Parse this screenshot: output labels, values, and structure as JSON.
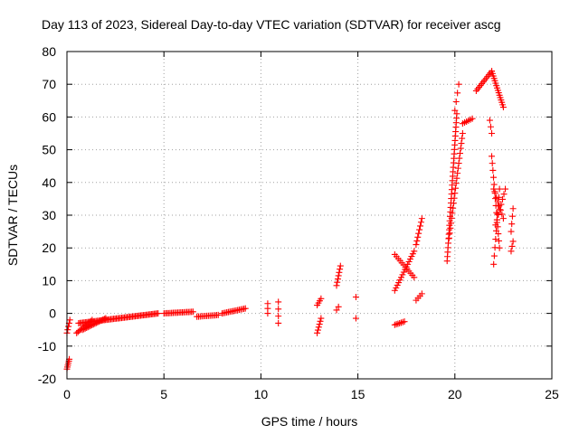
{
  "chart_data": {
    "type": "scatter",
    "title": "Day 113 of 2023, Sidereal Day-to-day VTEC variation (SDTVAR) for receiver ascg",
    "xlabel": "GPS time / hours",
    "ylabel": "SDTVAR / TECUs",
    "xlim": [
      0,
      25
    ],
    "ylim": [
      -20,
      80
    ],
    "xticks": [
      "0",
      "5",
      "10",
      "15",
      "20",
      "25"
    ],
    "yticks": [
      "-20",
      "-10",
      "0",
      "10",
      "20",
      "30",
      "40",
      "50",
      "60",
      "70",
      "80"
    ],
    "grid": true,
    "marker": "+",
    "color": "#ff0000",
    "series": [
      {
        "name": "SDTVAR",
        "segments": [
          {
            "x0": 0.0,
            "x1": 0.12,
            "y0": -17,
            "y1": -14,
            "n": 6
          },
          {
            "x0": 0.0,
            "x1": 0.15,
            "y0": -6,
            "y1": -2,
            "n": 5
          },
          {
            "x0": 0.5,
            "x1": 1.3,
            "y0": -6,
            "y1": -2,
            "n": 12
          },
          {
            "x0": 0.8,
            "x1": 2.0,
            "y0": -5,
            "y1": -1.5,
            "n": 18
          },
          {
            "x0": 0.6,
            "x1": 4.7,
            "y0": -3,
            "y1": 0,
            "n": 60
          },
          {
            "x0": 5.0,
            "x1": 6.5,
            "y0": 0,
            "y1": 0.5,
            "n": 20
          },
          {
            "x0": 6.7,
            "x1": 7.8,
            "y0": -1,
            "y1": -0.5,
            "n": 14
          },
          {
            "x0": 8.0,
            "x1": 9.2,
            "y0": 0,
            "y1": 1.5,
            "n": 16
          },
          {
            "x0": 10.35,
            "x1": 10.35,
            "y0": 0,
            "y1": 3,
            "n": 3
          },
          {
            "x0": 10.9,
            "x1": 10.9,
            "y0": -3,
            "y1": 3.5,
            "n": 4
          },
          {
            "x0": 12.9,
            "x1": 13.1,
            "y0": 2.5,
            "y1": 4.5,
            "n": 4
          },
          {
            "x0": 12.9,
            "x1": 13.1,
            "y0": -6,
            "y1": -1.5,
            "n": 6
          },
          {
            "x0": 13.9,
            "x1": 14.1,
            "y0": 8.5,
            "y1": 14.5,
            "n": 7
          },
          {
            "x0": 13.9,
            "x1": 14.0,
            "y0": 1,
            "y1": 2,
            "n": 2
          },
          {
            "x0": 14.9,
            "x1": 14.9,
            "y0": 5,
            "y1": 5,
            "n": 1
          },
          {
            "x0": 14.9,
            "x1": 14.9,
            "y0": -1.5,
            "y1": -1.5,
            "n": 1
          },
          {
            "x0": 16.9,
            "x1": 17.4,
            "y0": -3.5,
            "y1": -2.5,
            "n": 7
          },
          {
            "x0": 16.9,
            "x1": 17.9,
            "y0": 7,
            "y1": 19,
            "n": 16
          },
          {
            "x0": 16.9,
            "x1": 17.9,
            "y0": 18,
            "y1": 11,
            "n": 12
          },
          {
            "x0": 18.0,
            "x1": 18.3,
            "y0": 4,
            "y1": 6,
            "n": 4
          },
          {
            "x0": 18.0,
            "x1": 18.3,
            "y0": 21,
            "y1": 29,
            "n": 8
          },
          {
            "x0": 19.6,
            "x1": 20.1,
            "y0": 16,
            "y1": 61,
            "n": 34
          },
          {
            "x0": 19.7,
            "x1": 20.4,
            "y0": 23,
            "y1": 55,
            "n": 22
          },
          {
            "x0": 20.0,
            "x1": 20.2,
            "y0": 62,
            "y1": 70,
            "n": 4
          },
          {
            "x0": 20.4,
            "x1": 20.9,
            "y0": 58,
            "y1": 59.5,
            "n": 6
          },
          {
            "x0": 21.1,
            "x1": 21.9,
            "y0": 68,
            "y1": 74,
            "n": 12
          },
          {
            "x0": 21.8,
            "x1": 21.9,
            "y0": 59,
            "y1": 55,
            "n": 3
          },
          {
            "x0": 21.9,
            "x1": 22.5,
            "y0": 74,
            "y1": 63,
            "n": 16
          },
          {
            "x0": 21.9,
            "x1": 22.3,
            "y0": 48,
            "y1": 20,
            "n": 14
          },
          {
            "x0": 22.0,
            "x1": 22.3,
            "y0": 15,
            "y1": 38,
            "n": 10
          },
          {
            "x0": 22.1,
            "x1": 22.6,
            "y0": 27,
            "y1": 38,
            "n": 8
          },
          {
            "x0": 22.0,
            "x1": 22.5,
            "y0": 38,
            "y1": 29,
            "n": 8
          },
          {
            "x0": 22.9,
            "x1": 23.0,
            "y0": 25,
            "y1": 32,
            "n": 4
          },
          {
            "x0": 22.9,
            "x1": 23.0,
            "y0": 19,
            "y1": 22,
            "n": 3
          }
        ]
      }
    ]
  }
}
